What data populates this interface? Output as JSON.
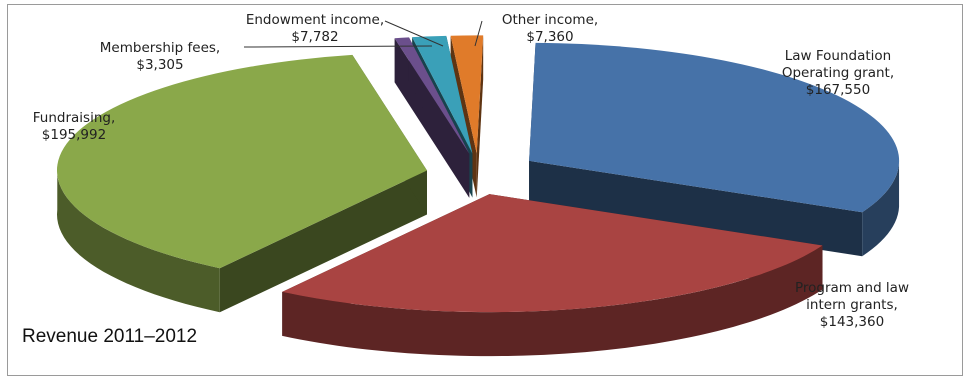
{
  "chart_data": {
    "type": "pie",
    "style": "3d-exploded",
    "title": "Revenue 2011–2012",
    "slices": [
      {
        "name": "Law Foundation Operating grant",
        "label_lines": [
          "Law Foundation",
          "Operating grant,"
        ],
        "value_label": "$167,550",
        "value": 167550,
        "color": "#4672a8"
      },
      {
        "name": "Program and law intern grants",
        "label_lines": [
          "Program and law",
          "intern grants,"
        ],
        "value_label": "$143,360",
        "value": 143360,
        "color": "#a94442"
      },
      {
        "name": "Fundraising",
        "label_lines": [
          "Fundraising,"
        ],
        "value_label": "$195,992",
        "value": 195992,
        "color": "#8aa84a"
      },
      {
        "name": "Membership fees",
        "label_lines": [
          "Membership fees,"
        ],
        "value_label": "$3,305",
        "value": 3305,
        "color": "#6b4f8c"
      },
      {
        "name": "Endowment income",
        "label_lines": [
          "Endowment income,"
        ],
        "value_label": "$7,782",
        "value": 7782,
        "color": "#3aa0b8"
      },
      {
        "name": "Other income",
        "label_lines": [
          "Other income,"
        ],
        "value_label": "$7,360",
        "value": 7360,
        "color": "#e07b2a"
      }
    ]
  }
}
